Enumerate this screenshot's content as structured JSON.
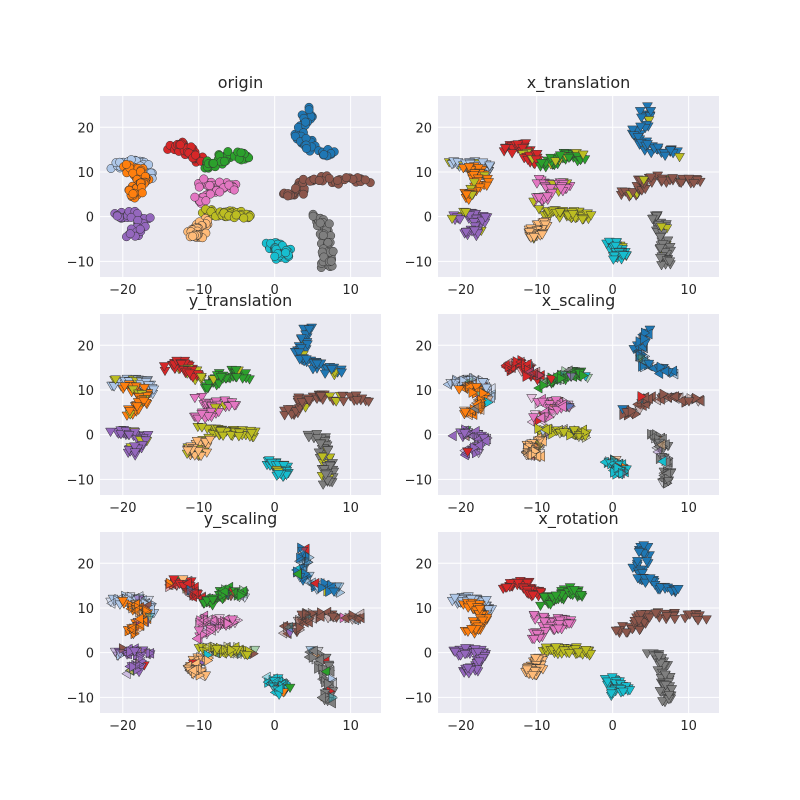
{
  "figure": {
    "panels": [
      {
        "title": "origin"
      },
      {
        "title": "x_translation"
      },
      {
        "title": "y_translation"
      },
      {
        "title": "x_scaling"
      },
      {
        "title": "y_scaling"
      },
      {
        "title": "x_rotation"
      }
    ],
    "palette": [
      "#1f77b4",
      "#ff7f0e",
      "#2ca02c",
      "#d62728",
      "#9467bd",
      "#8c564b",
      "#e377c2",
      "#7f7f7f",
      "#bcbd22",
      "#17becf",
      "#aec7e8",
      "#ffbb78"
    ]
  },
  "chart_data": {
    "type": "scatter",
    "xlim": [
      -23,
      14
    ],
    "ylim": [
      -13.5,
      27
    ],
    "xticks": [
      -20,
      -10,
      0,
      10
    ],
    "yticks": [
      -10,
      0,
      10,
      20
    ],
    "grid": true,
    "clusters": [
      {
        "color": "#1f77b4",
        "path": [
          [
            4.5,
            24.5
          ],
          [
            4,
            21
          ],
          [
            3.2,
            18
          ],
          [
            4.5,
            16
          ],
          [
            6.5,
            14.5
          ],
          [
            8.5,
            14
          ]
        ]
      },
      {
        "color": "#aec7e8",
        "path": [
          [
            -21,
            11.5
          ],
          [
            -19,
            12
          ],
          [
            -17,
            11.5
          ],
          [
            -16.5,
            9
          ]
        ]
      },
      {
        "color": "#ff7f0e",
        "path": [
          [
            -19.5,
            11
          ],
          [
            -18,
            10
          ],
          [
            -17,
            8
          ],
          [
            -18,
            6
          ],
          [
            -19,
            4.5
          ]
        ]
      },
      {
        "color": "#d62728",
        "path": [
          [
            -14,
            15
          ],
          [
            -12,
            16
          ],
          [
            -11,
            14
          ],
          [
            -10,
            12.5
          ]
        ]
      },
      {
        "color": "#2ca02c",
        "path": [
          [
            -9,
            11
          ],
          [
            -7.5,
            12.5
          ],
          [
            -5.5,
            14
          ],
          [
            -4,
            13
          ]
        ]
      },
      {
        "color": "#e377c2",
        "path": [
          [
            -10,
            8
          ],
          [
            -8.5,
            6.5
          ],
          [
            -7,
            7
          ],
          [
            -5.5,
            7
          ],
          [
            -9,
            4.5
          ],
          [
            -10,
            3.5
          ]
        ]
      },
      {
        "color": "#8c564b",
        "path": [
          [
            1,
            5
          ],
          [
            3,
            5.5
          ],
          [
            4,
            8
          ],
          [
            6,
            8.5
          ],
          [
            9,
            8
          ],
          [
            12,
            8
          ]
        ]
      },
      {
        "color": "#bcbd22",
        "path": [
          [
            -9.5,
            1
          ],
          [
            -7,
            0.5
          ],
          [
            -5,
            0.5
          ],
          [
            -3,
            0
          ]
        ]
      },
      {
        "color": "#ffbb78",
        "path": [
          [
            -9,
            -1
          ],
          [
            -10.5,
            -3
          ],
          [
            -11,
            -4
          ],
          [
            -9.5,
            -4.5
          ]
        ]
      },
      {
        "color": "#9467bd",
        "path": [
          [
            -21,
            0
          ],
          [
            -19,
            0.5
          ],
          [
            -17,
            -0.5
          ],
          [
            -18,
            -3
          ],
          [
            -19,
            -4
          ]
        ]
      },
      {
        "color": "#17becf",
        "path": [
          [
            -0.5,
            -6
          ],
          [
            0.5,
            -7
          ],
          [
            1.5,
            -8
          ],
          [
            0.5,
            -9
          ]
        ]
      },
      {
        "color": "#7f7f7f",
        "path": [
          [
            5,
            0
          ],
          [
            6.5,
            -1.5
          ],
          [
            6.5,
            -4
          ],
          [
            7,
            -6.5
          ],
          [
            7,
            -9
          ],
          [
            6.8,
            -11
          ]
        ]
      }
    ]
  }
}
